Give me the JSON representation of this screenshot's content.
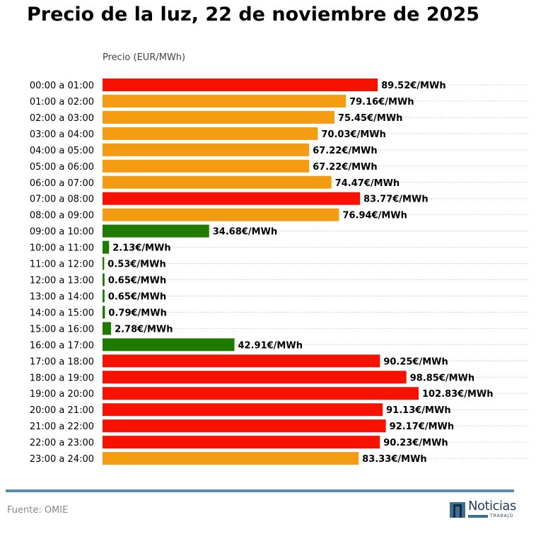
{
  "chart_data": {
    "type": "bar",
    "orientation": "horizontal",
    "title": "Precio de la luz, 22 de noviembre de 2025",
    "xlabel": "Precio (EUR/MWh)",
    "value_suffix": "€/MWh",
    "xlim": [
      0,
      102.83
    ],
    "grid": "horizontal dotted",
    "colors": {
      "high": "#f91100",
      "mid": "#f39c12",
      "low": "#1e7b00"
    },
    "categories": [
      "00:00 a 01:00",
      "01:00 a 02:00",
      "02:00 a 03:00",
      "03:00 a 04:00",
      "04:00 a 05:00",
      "05:00 a 06:00",
      "06:00 a 07:00",
      "07:00 a 08:00",
      "08:00 a 09:00",
      "09:00 a 10:00",
      "10:00 a 11:00",
      "11:00 a 12:00",
      "12:00 a 13:00",
      "13:00 a 14:00",
      "14:00 a 15:00",
      "15:00 a 16:00",
      "16:00 a 17:00",
      "17:00 a 18:00",
      "18:00 a 19:00",
      "19:00 a 20:00",
      "20:00 a 21:00",
      "21:00 a 22:00",
      "22:00 a 23:00",
      "23:00 a 24:00"
    ],
    "values": [
      89.52,
      79.16,
      75.45,
      70.03,
      67.22,
      67.22,
      74.47,
      83.77,
      76.94,
      34.68,
      2.13,
      0.53,
      0.65,
      0.65,
      0.79,
      2.78,
      42.91,
      90.25,
      98.85,
      102.83,
      91.13,
      92.17,
      90.23,
      83.33
    ],
    "levels": [
      "high",
      "mid",
      "mid",
      "mid",
      "mid",
      "mid",
      "mid",
      "high",
      "mid",
      "low",
      "low",
      "low",
      "low",
      "low",
      "low",
      "low",
      "low",
      "high",
      "high",
      "high",
      "high",
      "high",
      "high",
      "mid"
    ]
  },
  "footer": {
    "source": "Fuente: OMIE",
    "logo_text": "Noticias",
    "logo_sub": "TRABAJO"
  }
}
